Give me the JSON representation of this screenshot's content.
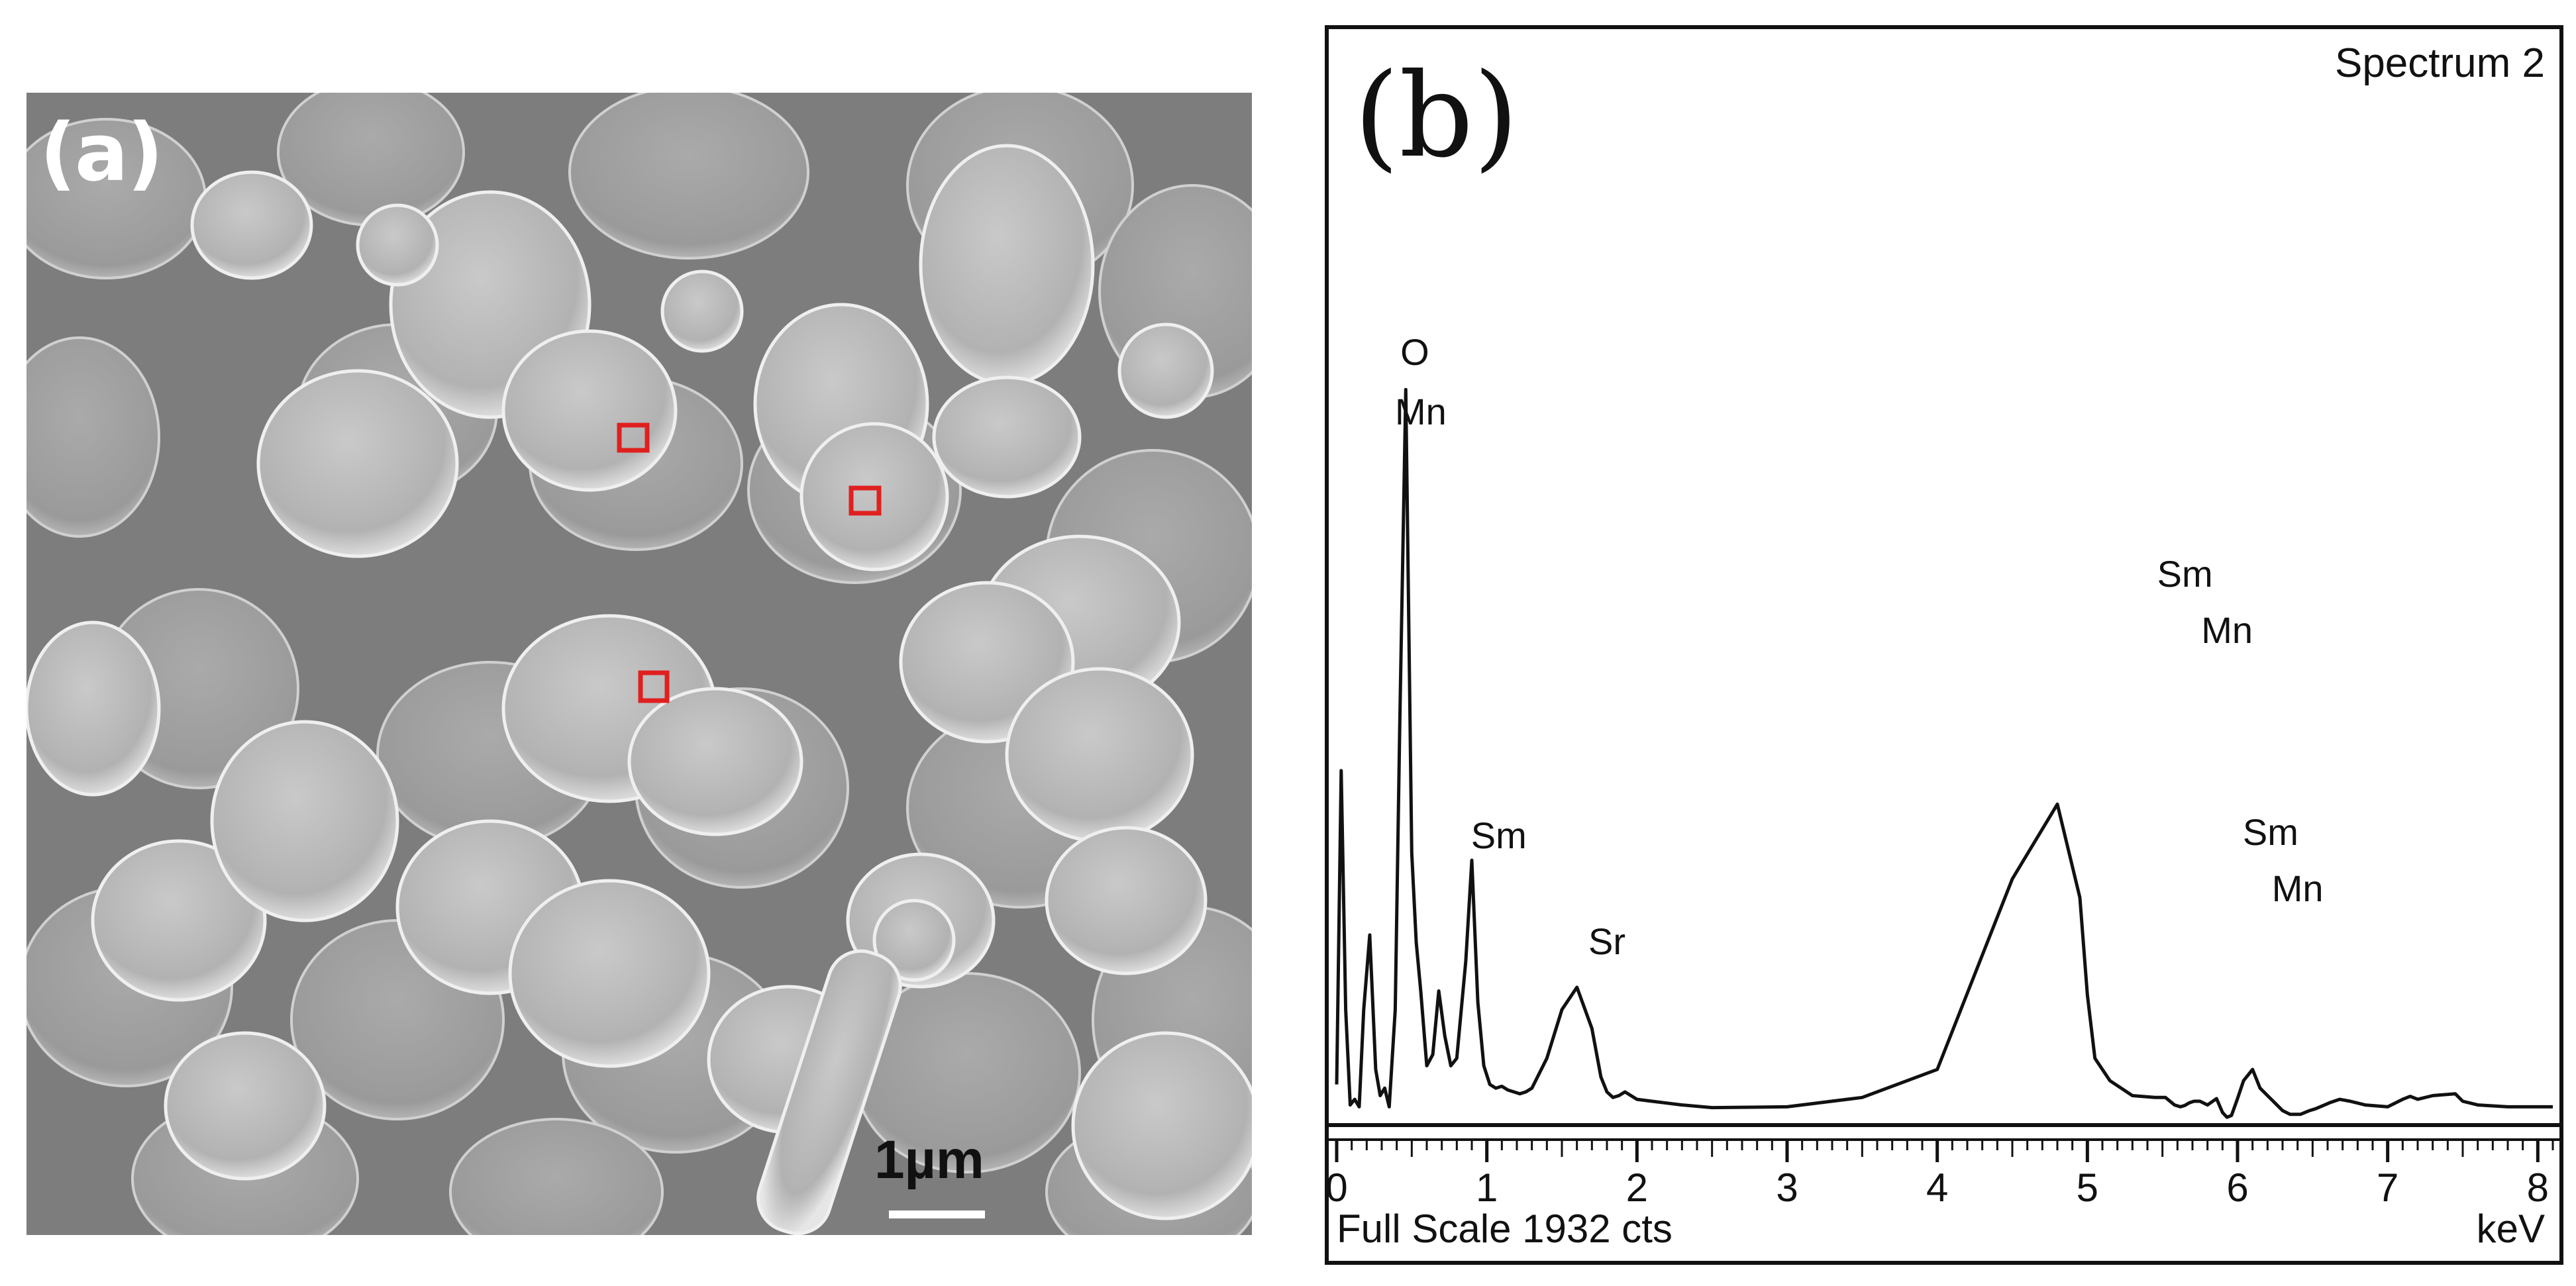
{
  "panel_a": {
    "label": "(a)",
    "scale_bar_text": "1µm",
    "colors": {
      "background": "#8e8e8e",
      "grain": "#b9b9b9",
      "marker": "#e0201f"
    }
  },
  "panel_b": {
    "label": "(b)",
    "spectrum_title": "Spectrum 2",
    "full_scale": "Full Scale 1932 cts",
    "x_unit": "keV"
  },
  "chart_data": {
    "type": "line",
    "title": "Spectrum 2",
    "xlabel": "keV",
    "ylabel": "",
    "xlim": [
      0,
      8.1
    ],
    "ylim": [
      0,
      1932
    ],
    "grid": false,
    "x_ticks": [
      "0",
      "1",
      "2",
      "3",
      "4",
      "5",
      "6",
      "7",
      "8"
    ],
    "series": [
      {
        "x": [
          0.0,
          0.03,
          0.06,
          0.09,
          0.12,
          0.15,
          0.18,
          0.22,
          0.26,
          0.29,
          0.32,
          0.35,
          0.39,
          0.42,
          0.46,
          0.5,
          0.53,
          0.56,
          0.6,
          0.64,
          0.68,
          0.72,
          0.76,
          0.8,
          0.83,
          0.86,
          0.9,
          0.94,
          0.98,
          1.02,
          1.06,
          1.1,
          1.14,
          1.18,
          1.22,
          1.26,
          1.3,
          1.4,
          1.5,
          1.6,
          1.7,
          1.76,
          1.8,
          1.84,
          1.88,
          1.92,
          1.96,
          2.0,
          2.1,
          2.2,
          2.3,
          2.5,
          3.0,
          3.5,
          4.0,
          4.5,
          4.8,
          4.95,
          5.0,
          5.05,
          5.15,
          5.3,
          5.45,
          5.52,
          5.58,
          5.62,
          5.65,
          5.68,
          5.71,
          5.75,
          5.8,
          5.86,
          5.9,
          5.93,
          5.96,
          6.0,
          6.04,
          6.1,
          6.15,
          6.2,
          6.25,
          6.3,
          6.35,
          6.42,
          6.48,
          6.52,
          6.55,
          6.58,
          6.62,
          6.68,
          6.75,
          6.85,
          7.0,
          7.1,
          7.15,
          7.2,
          7.3,
          7.45,
          7.5,
          7.6,
          7.8,
          8.0,
          8.1
        ],
        "y": [
          100,
          940,
          300,
          45,
          60,
          40,
          300,
          500,
          140,
          70,
          90,
          40,
          300,
          1060,
          1960,
          720,
          480,
          350,
          150,
          180,
          350,
          230,
          150,
          170,
          300,
          430,
          700,
          320,
          150,
          100,
          90,
          95,
          85,
          80,
          75,
          80,
          90,
          170,
          300,
          360,
          250,
          120,
          80,
          65,
          70,
          80,
          70,
          60,
          55,
          50,
          45,
          38,
          40,
          65,
          140,
          650,
          850,
          600,
          340,
          170,
          110,
          70,
          65,
          65,
          45,
          40,
          44,
          51,
          55,
          55,
          45,
          62,
          25,
          12,
          17,
          62,
          110,
          140,
          90,
          70,
          50,
          30,
          20,
          20,
          30,
          35,
          40,
          45,
          52,
          60,
          55,
          45,
          40,
          60,
          68,
          60,
          70,
          75,
          55,
          45,
          40,
          40,
          40
        ]
      }
    ],
    "annotations": [
      {
        "text": "O",
        "x": 0.52
      },
      {
        "text": "Mn",
        "x": 0.56
      },
      {
        "text": "Sm",
        "x": 1.08
      },
      {
        "text": "Sr",
        "x": 1.8
      },
      {
        "text": "Sm",
        "x": 5.65
      },
      {
        "text": "Mn",
        "x": 5.93
      },
      {
        "text": "Sm",
        "x": 6.22
      },
      {
        "text": "Mn",
        "x": 6.4
      }
    ]
  }
}
